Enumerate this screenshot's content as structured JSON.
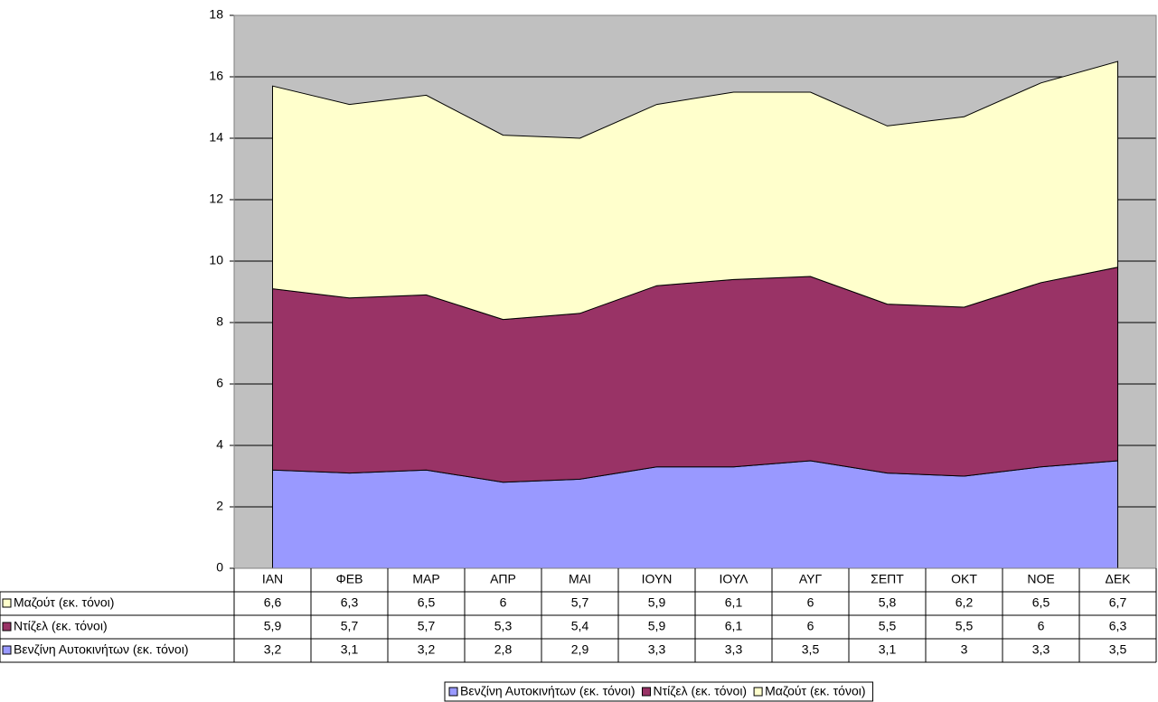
{
  "chart_data": {
    "type": "stacked-area",
    "categories": [
      "ΙΑΝ",
      "ΦΕΒ",
      "ΜΑΡ",
      "ΑΠΡ",
      "ΜΑΙ",
      "ΙΟΥΝ",
      "ΙΟΥΛ",
      "ΑΥΓ",
      "ΣΕΠΤ",
      "ΟΚΤ",
      "ΝΟΕ",
      "ΔΕΚ"
    ],
    "series": [
      {
        "name": "Βενζίνη Αυτοκινήτων (εκ. τόνοι)",
        "color": "#9999ff",
        "values": [
          3.2,
          3.1,
          3.2,
          2.8,
          2.9,
          3.3,
          3.3,
          3.5,
          3.1,
          3,
          3.3,
          3.5
        ],
        "value_labels": [
          "3,2",
          "3,1",
          "3,2",
          "2,8",
          "2,9",
          "3,3",
          "3,3",
          "3,5",
          "3,1",
          "3",
          "3,3",
          "3,5"
        ]
      },
      {
        "name": "Ντίζελ (εκ. τόνοι)",
        "color": "#993366",
        "values": [
          5.9,
          5.7,
          5.7,
          5.3,
          5.4,
          5.9,
          6.1,
          6,
          5.5,
          5.5,
          6,
          6.3
        ],
        "value_labels": [
          "5,9",
          "5,7",
          "5,7",
          "5,3",
          "5,4",
          "5,9",
          "6,1",
          "6",
          "5,5",
          "5,5",
          "6",
          "6,3"
        ]
      },
      {
        "name": "Μαζούτ (εκ. τόνοι)",
        "color": "#ffffcc",
        "values": [
          6.6,
          6.3,
          6.5,
          6,
          5.7,
          5.9,
          6.1,
          6,
          5.8,
          6.2,
          6.5,
          6.7
        ],
        "value_labels": [
          "6,6",
          "6,3",
          "6,5",
          "6",
          "5,7",
          "5,9",
          "6,1",
          "6",
          "5,8",
          "6,2",
          "6,5",
          "6,7"
        ]
      }
    ],
    "ylim": [
      0,
      18
    ],
    "yticks": [
      0,
      2,
      4,
      6,
      8,
      10,
      12,
      14,
      16,
      18
    ],
    "grid": true,
    "plot_background": "#c0c0c0",
    "legend": "bottom"
  }
}
